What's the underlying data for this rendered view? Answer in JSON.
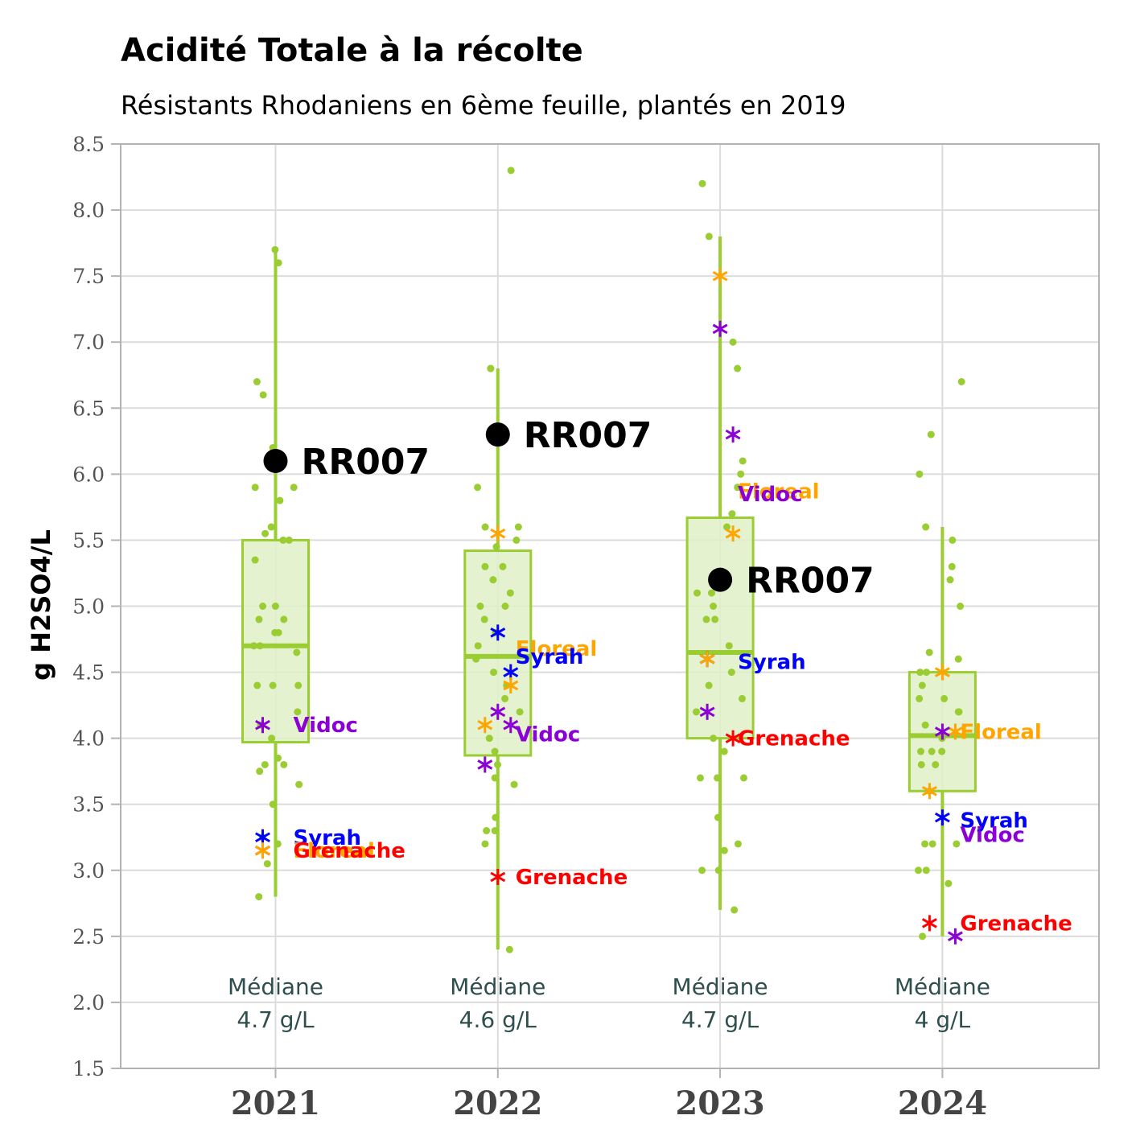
{
  "chart_data": {
    "type": "box",
    "title": "Acidité Totale à la récolte",
    "subtitle": "Résistants Rhodaniens en 6ème feuille, plantés en 2019",
    "ylabel": "g H2SO4/L",
    "xlabel": "",
    "ylim": [
      1.5,
      8.5
    ],
    "yticks": [
      "1.5",
      "2.0",
      "2.5",
      "3.0",
      "3.5",
      "4.0",
      "4.5",
      "5.0",
      "5.5",
      "6.0",
      "6.5",
      "7.0",
      "7.5",
      "8.0",
      "8.5"
    ],
    "grid": true,
    "colors": {
      "box": "#9acd32",
      "box_fill": "#dff0c8",
      "Syrah": "#0000ff",
      "Grenache": "#ff0000",
      "Floreal": "#ffa500",
      "Vidoc": "#8b00d4",
      "highlight": "#000000",
      "median_text": "#2f4f4f"
    },
    "categories": [
      "2021",
      "2022",
      "2023",
      "2024"
    ],
    "boxes": [
      {
        "year": "2021",
        "whisker_low": 2.8,
        "q1": 3.97,
        "median": 4.7,
        "q3": 5.5,
        "whisker_high": 7.7,
        "points": [
          7.7,
          7.6,
          6.7,
          6.6,
          6.2,
          6.15,
          5.9,
          5.9,
          5.8,
          5.6,
          5.55,
          5.5,
          5.5,
          5.35,
          5.0,
          5.0,
          4.9,
          4.9,
          4.8,
          4.8,
          4.7,
          4.7,
          4.65,
          4.4,
          4.4,
          4.4,
          4.2,
          4.1,
          4.0,
          3.85,
          3.8,
          3.8,
          3.75,
          3.65,
          3.5,
          3.25,
          3.2,
          3.05,
          2.8
        ]
      },
      {
        "year": "2022",
        "whisker_low": 2.4,
        "q1": 3.87,
        "median": 4.62,
        "q3": 5.42,
        "whisker_high": 6.8,
        "points": [
          8.3,
          6.8,
          6.8,
          5.9,
          5.6,
          5.6,
          5.5,
          5.45,
          5.3,
          5.3,
          5.2,
          5.1,
          5.0,
          5.0,
          4.9,
          4.8,
          4.7,
          4.6,
          4.5,
          4.4,
          4.3,
          4.2,
          4.0,
          3.9,
          3.8,
          3.7,
          3.65,
          3.4,
          3.3,
          3.3,
          3.2,
          2.4
        ]
      },
      {
        "year": "2023",
        "whisker_low": 2.7,
        "q1": 4.0,
        "median": 4.65,
        "q3": 5.67,
        "whisker_high": 7.8,
        "points": [
          8.2,
          7.8,
          7.0,
          6.8,
          6.1,
          6.0,
          5.9,
          5.7,
          5.6,
          5.2,
          5.1,
          5.1,
          5.0,
          4.9,
          4.9,
          4.7,
          4.5,
          4.4,
          4.3,
          4.2,
          4.0,
          3.9,
          3.7,
          3.7,
          3.7,
          3.4,
          3.2,
          3.15,
          3.0,
          3.0,
          2.7
        ]
      },
      {
        "year": "2024",
        "whisker_low": 2.5,
        "q1": 3.6,
        "median": 4.02,
        "q3": 4.5,
        "whisker_high": 5.6,
        "points": [
          6.7,
          6.3,
          6.0,
          5.6,
          5.5,
          5.3,
          5.2,
          5.0,
          4.65,
          4.6,
          4.5,
          4.5,
          4.4,
          4.3,
          4.3,
          4.2,
          4.2,
          4.1,
          4.0,
          3.9,
          3.9,
          3.9,
          3.8,
          3.8,
          3.6,
          3.2,
          3.2,
          3.2,
          3.0,
          3.0,
          2.9,
          2.5
        ]
      }
    ],
    "highlight": {
      "name": "RR007",
      "values": [
        {
          "year": "2021",
          "y": 6.1
        },
        {
          "year": "2022",
          "y": 6.3
        },
        {
          "year": "2023",
          "y": 5.2
        }
      ]
    },
    "references": [
      {
        "name": "Syrah",
        "values": [
          {
            "year": "2021",
            "y": 3.25
          },
          {
            "year": "2022",
            "y": 4.8
          },
          {
            "year": "2022",
            "y": 4.5
          },
          {
            "year": "2023",
            "y": 4.6
          },
          {
            "year": "2024",
            "y": 3.4
          }
        ]
      },
      {
        "name": "Grenache",
        "values": [
          {
            "year": "2021",
            "y": 3.15
          },
          {
            "year": "2022",
            "y": 2.95
          },
          {
            "year": "2023",
            "y": 4.0
          },
          {
            "year": "2024",
            "y": 2.6
          }
        ]
      },
      {
        "name": "Floreal",
        "values": [
          {
            "year": "2021",
            "y": 3.15
          },
          {
            "year": "2022",
            "y": 5.55
          },
          {
            "year": "2022",
            "y": 4.4
          },
          {
            "year": "2022",
            "y": 4.1
          },
          {
            "year": "2023",
            "y": 7.5
          },
          {
            "year": "2023",
            "y": 5.55
          },
          {
            "year": "2023",
            "y": 4.6
          },
          {
            "year": "2024",
            "y": 4.5
          },
          {
            "year": "2024",
            "y": 4.05
          },
          {
            "year": "2024",
            "y": 3.6
          }
        ]
      },
      {
        "name": "Vidoc",
        "values": [
          {
            "year": "2021",
            "y": 4.1
          },
          {
            "year": "2022",
            "y": 4.2
          },
          {
            "year": "2022",
            "y": 4.1
          },
          {
            "year": "2022",
            "y": 3.8
          },
          {
            "year": "2023",
            "y": 7.1
          },
          {
            "year": "2023",
            "y": 6.3
          },
          {
            "year": "2023",
            "y": 4.2
          },
          {
            "year": "2024",
            "y": 4.05
          },
          {
            "year": "2024",
            "y": 2.5
          }
        ]
      }
    ],
    "ref_labels": [
      {
        "year": "2021",
        "name": "Vidoc",
        "y": 4.1
      },
      {
        "year": "2021",
        "name": "Syrah",
        "y": 3.25
      },
      {
        "year": "2021",
        "name": "Floreal",
        "y": 3.15
      },
      {
        "year": "2021",
        "name": "Grenache",
        "y": 3.15
      },
      {
        "year": "2022",
        "name": "Floreal",
        "y": 4.68
      },
      {
        "year": "2022",
        "name": "Syrah",
        "y": 4.62
      },
      {
        "year": "2022",
        "name": "Vidoc",
        "y": 4.03
      },
      {
        "year": "2022",
        "name": "Grenache",
        "y": 2.95
      },
      {
        "year": "2023",
        "name": "Floreal",
        "y": 5.87
      },
      {
        "year": "2023",
        "name": "Vidoc",
        "y": 5.85
      },
      {
        "year": "2023",
        "name": "Syrah",
        "y": 4.58
      },
      {
        "year": "2023",
        "name": "Grenache",
        "y": 4.0
      },
      {
        "year": "2024",
        "name": "Floreal",
        "y": 4.05
      },
      {
        "year": "2024",
        "name": "Syrah",
        "y": 3.38
      },
      {
        "year": "2024",
        "name": "Vidoc",
        "y": 3.27
      },
      {
        "year": "2024",
        "name": "Grenache",
        "y": 2.6
      }
    ],
    "median_labels": [
      {
        "year": "2021",
        "line1": "Médiane",
        "line2": "4.7 g/L"
      },
      {
        "year": "2022",
        "line1": "Médiane",
        "line2": "4.6 g/L"
      },
      {
        "year": "2023",
        "line1": "Médiane",
        "line2": "4.7 g/L"
      },
      {
        "year": "2024",
        "line1": "Médiane",
        "line2": "4 g/L"
      }
    ]
  }
}
